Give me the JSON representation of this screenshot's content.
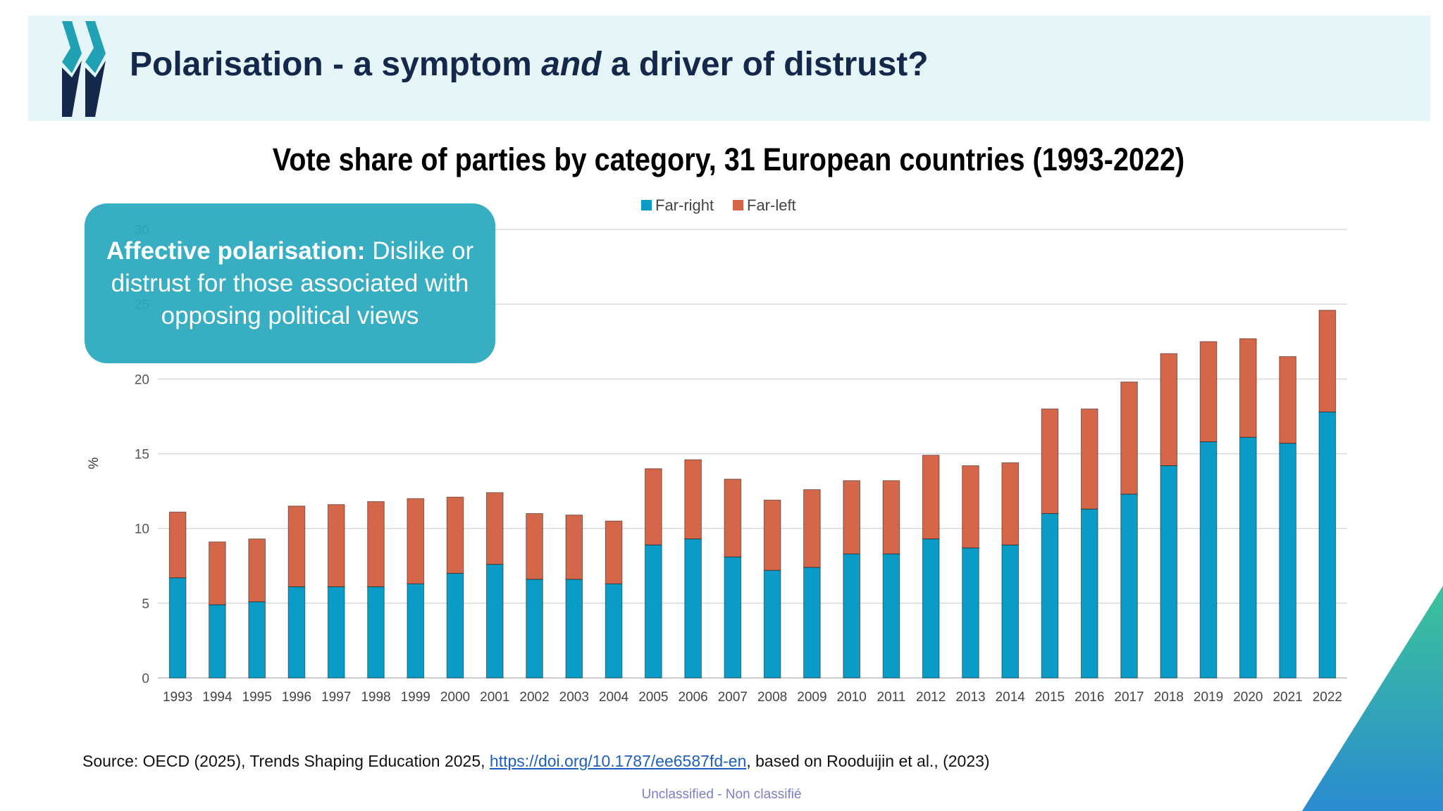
{
  "slide": {
    "title_prefix": "Polarisation - a symptom ",
    "title_emph": "and",
    "title_suffix": " a driver of distrust?",
    "callout_bold": "Affective polarisation:",
    "callout_text": " Dislike or distrust for those associated with opposing political views",
    "source_prefix": "Source: OECD (2025), Trends Shaping Education 2025, ",
    "source_link": "https://doi.org/10.1787/ee6587fd-en",
    "source_suffix": ", based on Rooduijin et al., (2023)",
    "classification": "Unclassified - Non classifié"
  },
  "colors": {
    "header_band": "#e6f5f7",
    "title": "#14284b",
    "far_right": "#0a9cc6",
    "far_left": "#d4674a",
    "callout": "#29a8be"
  },
  "chart_data": {
    "type": "bar",
    "stacked": true,
    "title": "Vote share of parties by category, 31 European countries (1993-2022)",
    "xlabel": "",
    "ylabel": "%",
    "ylim": [
      0,
      30
    ],
    "yticks": [
      0,
      5,
      10,
      15,
      20,
      25,
      30
    ],
    "grid": true,
    "legend_position": "top-center",
    "categories": [
      "1993",
      "1994",
      "1995",
      "1996",
      "1997",
      "1998",
      "1999",
      "2000",
      "2001",
      "2002",
      "2003",
      "2004",
      "2005",
      "2006",
      "2007",
      "2008",
      "2009",
      "2010",
      "2011",
      "2012",
      "2013",
      "2014",
      "2015",
      "2016",
      "2017",
      "2018",
      "2019",
      "2020",
      "2021",
      "2022"
    ],
    "series": [
      {
        "name": "Far-right",
        "color": "#0a9cc6",
        "values": [
          6.7,
          4.9,
          5.1,
          6.1,
          6.1,
          6.1,
          6.3,
          7.0,
          7.6,
          6.6,
          6.6,
          6.3,
          8.9,
          9.3,
          8.1,
          7.2,
          7.4,
          8.3,
          8.3,
          9.3,
          8.7,
          8.9,
          11.0,
          11.3,
          12.3,
          14.2,
          15.8,
          16.1,
          15.7,
          17.8
        ]
      },
      {
        "name": "Far-left",
        "color": "#d4674a",
        "values": [
          4.4,
          4.2,
          4.2,
          5.4,
          5.5,
          5.7,
          5.7,
          5.1,
          4.8,
          4.4,
          4.3,
          4.2,
          5.1,
          5.3,
          5.2,
          4.7,
          5.2,
          4.9,
          4.9,
          5.6,
          5.5,
          5.5,
          7.0,
          6.7,
          7.5,
          7.5,
          6.7,
          6.6,
          5.8,
          6.8
        ]
      }
    ]
  }
}
